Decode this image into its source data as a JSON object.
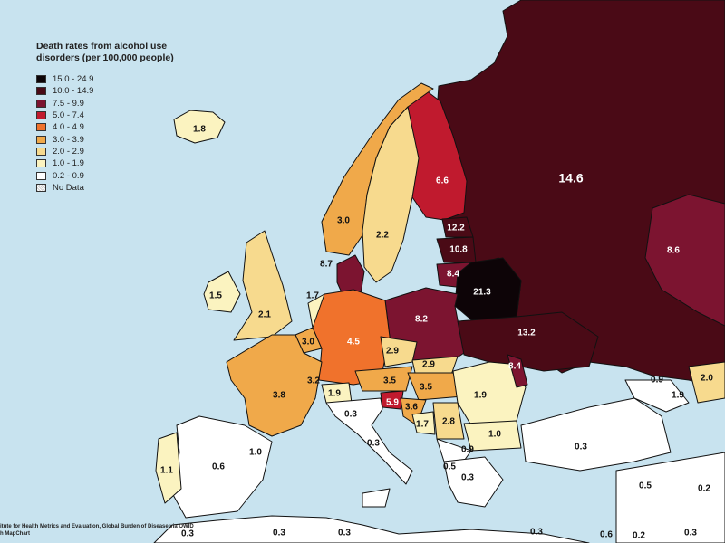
{
  "title": "Death rates from alcohol use disorders (per 100,000 people)",
  "legend": [
    {
      "label": "15.0 - 24.9",
      "color": "#0d0407"
    },
    {
      "label": "10.0 - 14.9",
      "color": "#4a0a16"
    },
    {
      "label": "7.5 - 9.9",
      "color": "#7c1430"
    },
    {
      "label": "5.0 - 7.4",
      "color": "#c01a2e"
    },
    {
      "label": "4.0 - 4.9",
      "color": "#f0722c"
    },
    {
      "label": "3.0 - 3.9",
      "color": "#f0a94a"
    },
    {
      "label": "2.0 - 2.9",
      "color": "#f7da8e"
    },
    {
      "label": "1.0 - 1.9",
      "color": "#fbf3c0"
    },
    {
      "label": "0.2 - 0.9",
      "color": "#ffffff"
    },
    {
      "label": "No Data",
      "color": "#cfcfcf"
    }
  ],
  "labels": [
    "14.6",
    "8.6",
    "6.6",
    "12.2",
    "10.8",
    "8.4",
    "21.3",
    "8.7",
    "3.0",
    "2.2",
    "1.8",
    "1.5",
    "2.1",
    "1.7",
    "8.2",
    "13.2",
    "4.5",
    "3.0",
    "2.9",
    "2.9",
    "3.2",
    "3.8",
    "3.5",
    "3.5",
    "1.9",
    "8.4",
    "1.9",
    "5.9",
    "3.6",
    "1.7",
    "2.8",
    "1.0",
    "0.3",
    "0.3",
    "1.0",
    "0.6",
    "1.1",
    "0.9",
    "0.5",
    "0.3",
    "0.3",
    "0.9",
    "2.0",
    "1.9",
    "0.5",
    "0.2",
    "0.3",
    "0.3",
    "0.3",
    "0.3",
    "0.3",
    "0.2",
    "0.6"
  ],
  "source": [
    "itute for Health Metrics and Evaluation, Global Burden of Disease via OWID",
    "h MapChart"
  ]
}
